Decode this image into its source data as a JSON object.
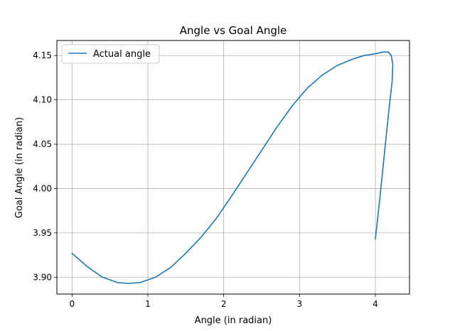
{
  "chart_data": {
    "type": "line",
    "title": "Angle vs Goal Angle",
    "xlabel": "Angle (in radian)",
    "ylabel": "Goal Angle (in radian)",
    "xlim": [
      -0.2,
      4.45
    ],
    "ylim": [
      3.881,
      4.167
    ],
    "xticks": [
      0,
      1,
      2,
      3,
      4
    ],
    "xtick_labels": [
      "0",
      "1",
      "2",
      "3",
      "4"
    ],
    "yticks": [
      3.9,
      3.95,
      4.0,
      4.05,
      4.1,
      4.15
    ],
    "ytick_labels": [
      "3.90",
      "3.95",
      "4.00",
      "4.05",
      "4.10",
      "4.15"
    ],
    "grid": true,
    "legend_position": "top-left",
    "series": [
      {
        "name": "Actual angle",
        "color": "#1f77b4",
        "x": [
          0.0,
          0.2,
          0.4,
          0.6,
          0.75,
          0.9,
          1.1,
          1.3,
          1.5,
          1.7,
          1.9,
          2.1,
          2.3,
          2.5,
          2.7,
          2.9,
          3.1,
          3.3,
          3.5,
          3.7,
          3.85,
          4.0,
          4.1,
          4.17,
          4.21,
          4.23,
          4.22,
          4.18,
          4.12,
          4.06,
          4.0
        ],
        "y": [
          3.927,
          3.912,
          3.9,
          3.894,
          3.893,
          3.894,
          3.9,
          3.911,
          3.927,
          3.945,
          3.966,
          3.991,
          4.017,
          4.043,
          4.069,
          4.093,
          4.113,
          4.128,
          4.139,
          4.146,
          4.15,
          4.152,
          4.154,
          4.154,
          4.15,
          4.14,
          4.12,
          4.09,
          4.04,
          3.99,
          3.943
        ]
      }
    ]
  }
}
